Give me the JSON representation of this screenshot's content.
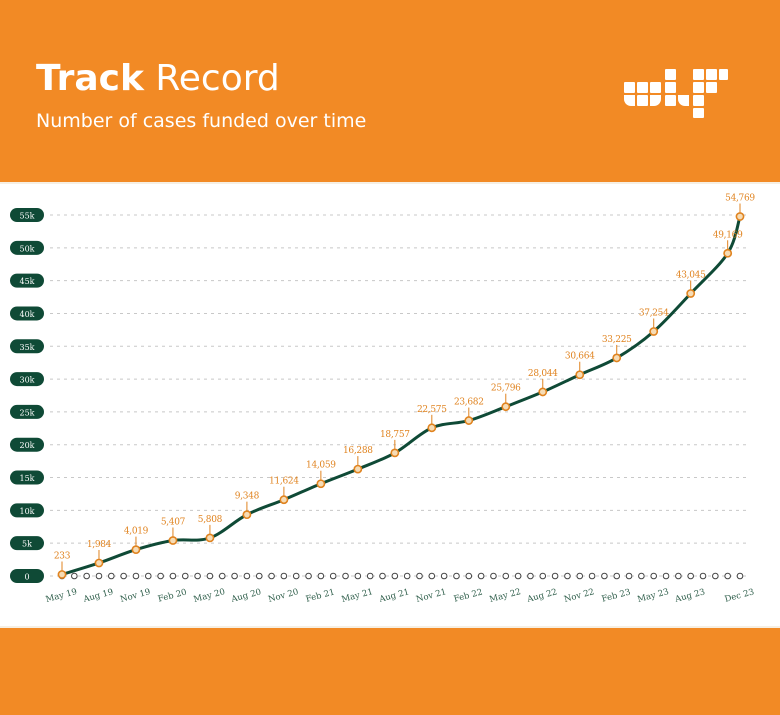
{
  "header": {
    "title_bold": "Track",
    "title_rest": "Record",
    "subtitle": "Number of cases funded over time",
    "logo_icon": "brand-grid-logo-icon"
  },
  "colors": {
    "brand_orange": "#f28a25",
    "line": "#0f4a36",
    "marker_fill": "#f6dcb5",
    "marker_stroke": "#e0831f",
    "label": "#e0831f",
    "axis_badge": "#0f4a36",
    "grid": "#c8c8c8"
  },
  "chart_data": {
    "type": "line",
    "title": "",
    "xlabel": "",
    "ylabel": "",
    "ylim": [
      0,
      55000
    ],
    "yticks": [
      0,
      5000,
      10000,
      15000,
      20000,
      25000,
      30000,
      35000,
      40000,
      45000,
      50000,
      55000
    ],
    "ytick_labels": [
      "0",
      "5k",
      "10k",
      "15k",
      "20k",
      "25k",
      "30k",
      "35k",
      "40k",
      "45k",
      "50k",
      "55k"
    ],
    "x_start": "May 19",
    "x_end": "Dec 23",
    "xtick_labels": [
      "May 19",
      "Aug 19",
      "Nov 19",
      "Feb 20",
      "May 20",
      "Aug 20",
      "Nov 20",
      "Feb 21",
      "May 21",
      "Aug 21",
      "Nov 21",
      "Feb 22",
      "May 22",
      "Aug 22",
      "Nov 22",
      "Feb 23",
      "May 23",
      "Aug 23",
      "Dec 23"
    ],
    "grid": true,
    "legend": "none",
    "series": [
      {
        "points": [
          {
            "x": "May 19",
            "y": 233,
            "label": "233"
          },
          {
            "x": "Aug 19",
            "y": 1984,
            "label": "1,984"
          },
          {
            "x": "Nov 19",
            "y": 4019,
            "label": "4,019"
          },
          {
            "x": "Feb 20",
            "y": 5407,
            "label": "5,407"
          },
          {
            "x": "May 20",
            "y": 5808,
            "label": "5,808"
          },
          {
            "x": "Aug 20",
            "y": 9348,
            "label": "9,348"
          },
          {
            "x": "Nov 20",
            "y": 11624,
            "label": "11,624"
          },
          {
            "x": "Feb 21",
            "y": 14059,
            "label": "14,059"
          },
          {
            "x": "May 21",
            "y": 16288,
            "label": "16,288"
          },
          {
            "x": "Aug 21",
            "y": 18757,
            "label": "18,757"
          },
          {
            "x": "Nov 21",
            "y": 22575,
            "label": "22,575"
          },
          {
            "x": "Feb 22",
            "y": 23682,
            "label": "23,682"
          },
          {
            "x": "May 22",
            "y": 25796,
            "label": "25,796"
          },
          {
            "x": "Aug 22",
            "y": 28044,
            "label": "28,044"
          },
          {
            "x": "Nov 22",
            "y": 30664,
            "label": "30,664"
          },
          {
            "x": "Feb 23",
            "y": 33225,
            "label": "33,225"
          },
          {
            "x": "May 23",
            "y": 37254,
            "label": "37,254"
          },
          {
            "x": "Aug 23",
            "y": 43045,
            "label": "43,045"
          },
          {
            "x": "Nov 23",
            "y": 49169,
            "label": "49,169"
          },
          {
            "x": "Dec 23",
            "y": 54769,
            "label": "54,769"
          }
        ]
      }
    ]
  }
}
